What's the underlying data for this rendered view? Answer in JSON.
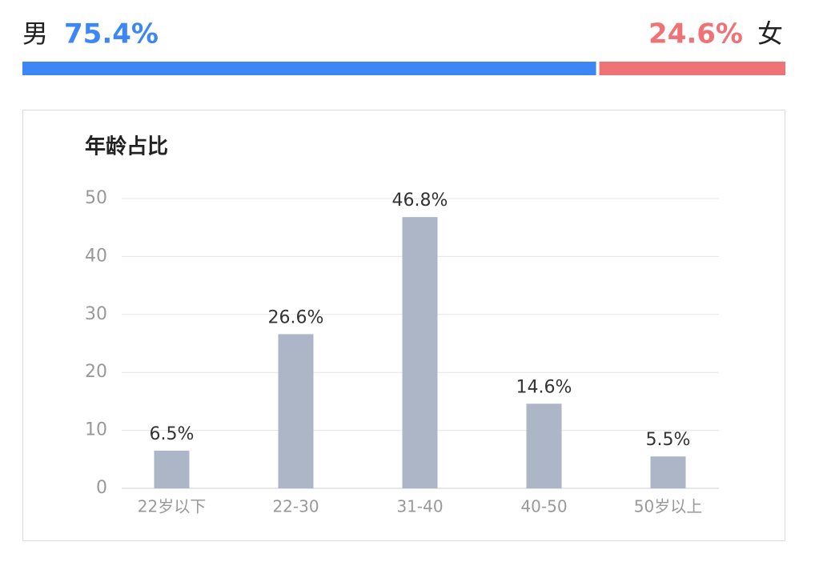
{
  "gender": {
    "male": {
      "label": "男",
      "value": 75.4,
      "value_label": "75.4%",
      "color": "#3d86f5"
    },
    "female": {
      "label": "女",
      "value": 24.6,
      "value_label": "24.6%",
      "color": "#ee7276"
    }
  },
  "chart_data": {
    "type": "bar",
    "title": "年龄占比",
    "categories": [
      "22岁以下",
      "22-30",
      "31-40",
      "40-50",
      "50岁以上"
    ],
    "values": [
      6.5,
      26.6,
      46.8,
      14.6,
      5.5
    ],
    "value_labels": [
      "6.5%",
      "26.6%",
      "46.8%",
      "14.6%",
      "5.5%"
    ],
    "color": "#adb6c6",
    "ylim": [
      0,
      50
    ],
    "yticks": [
      0,
      10,
      20,
      30,
      40,
      50
    ],
    "grid": true
  }
}
